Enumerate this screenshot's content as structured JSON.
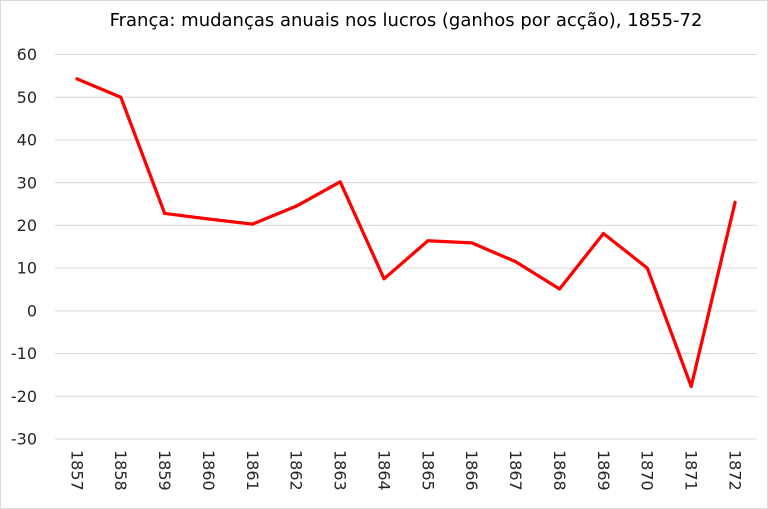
{
  "chart_data": {
    "type": "line",
    "title": "França: mudanças anuais nos lucros (ganhos por acção), 1855-72",
    "categories": [
      "1857",
      "1858",
      "1859",
      "1860",
      "1861",
      "1862",
      "1863",
      "1864",
      "1865",
      "1866",
      "1867",
      "1868",
      "1869",
      "1870",
      "1871",
      "1872"
    ],
    "values": [
      54.3,
      50,
      22.8,
      21.5,
      20.3,
      24.5,
      30.2,
      7.5,
      16.4,
      15.9,
      11.5,
      5.1,
      18.1,
      10,
      -17.7,
      25.4
    ],
    "xlabel": "",
    "ylabel": "",
    "ylim": [
      -30,
      60
    ],
    "yticks": [
      60,
      50,
      40,
      30,
      20,
      10,
      0,
      -10,
      -20,
      -30
    ],
    "ytick_step": 10,
    "grid": true,
    "legend": "none",
    "x_label_rotation_deg": 90,
    "colors": {
      "line": "#FF0000",
      "grid": "#D9D9D9",
      "tick_text": "#262626",
      "title_text": "#000000",
      "background": "#FFFFFF",
      "frame_border": "#D9D9D9"
    }
  }
}
